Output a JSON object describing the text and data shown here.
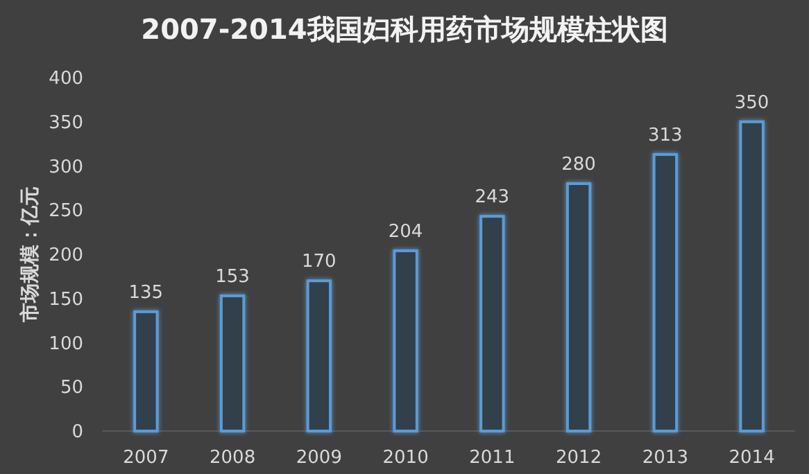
{
  "chart_data": {
    "type": "bar",
    "title": "2007-2014我国妇科用药市场规模柱状图",
    "ylabel": "市场规模：亿元",
    "categories": [
      "2007",
      "2008",
      "2009",
      "2010",
      "2011",
      "2012",
      "2013",
      "2014"
    ],
    "values": [
      135,
      153,
      170,
      204,
      243,
      280,
      313,
      350
    ],
    "color": "#5b9bd5",
    "ylim": [
      0,
      400
    ],
    "yticks": [
      0,
      50,
      100,
      150,
      200,
      250,
      300,
      350,
      400
    ],
    "data_labels": true
  }
}
